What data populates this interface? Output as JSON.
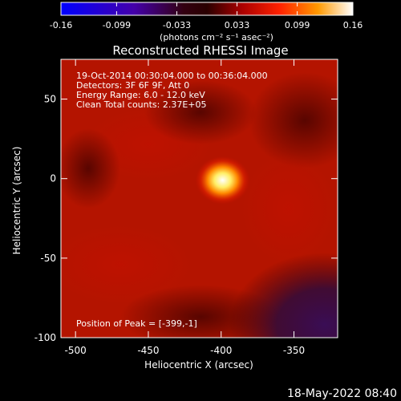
{
  "colorbar": {
    "tick_labels": [
      "-0.16",
      "-0.099",
      "-0.033",
      "0.033",
      "0.099",
      "0.16"
    ],
    "ticks": [
      -0.16,
      -0.099,
      -0.033,
      0.033,
      0.099,
      0.16
    ],
    "range": [
      -0.16,
      0.16
    ],
    "units": "(photons cm⁻² s⁻¹ asec⁻²)"
  },
  "footer": {
    "timestamp": "18-May-2022 08:40"
  },
  "chart_data": {
    "type": "heatmap",
    "title": "Reconstructed RHESSI Image",
    "xlabel": "Heliocentric X (arcsec)",
    "ylabel": "Heliocentric Y (arcsec)",
    "xlim": [
      -510,
      -320
    ],
    "ylim": [
      -100,
      75
    ],
    "x_ticks": [
      -500,
      -450,
      -400,
      -350
    ],
    "y_ticks": [
      -100,
      -50,
      0,
      50
    ],
    "x_tick_labels": [
      "-500",
      "-450",
      "-400",
      "-350"
    ],
    "y_tick_labels": [
      "-100",
      "-50",
      "0",
      "50"
    ],
    "colormap": "rhessi-thermal",
    "annotations": [
      "19-Oct-2014 00:30:04.000 to 00:36:04.000",
      "Detectors: 3F 6F 9F, Att 0",
      "Energy Range: 6.0 - 12.0 keV",
      "Clean    Total counts: 2.37E+05"
    ],
    "peak_label": "Position of Peak = [-399,-1]",
    "peak": {
      "x": -399,
      "y": -1,
      "value": 0.16
    },
    "background_level": 0.03,
    "dim_region": {
      "x_from": -360,
      "y_below": -60,
      "value": -0.02
    }
  }
}
